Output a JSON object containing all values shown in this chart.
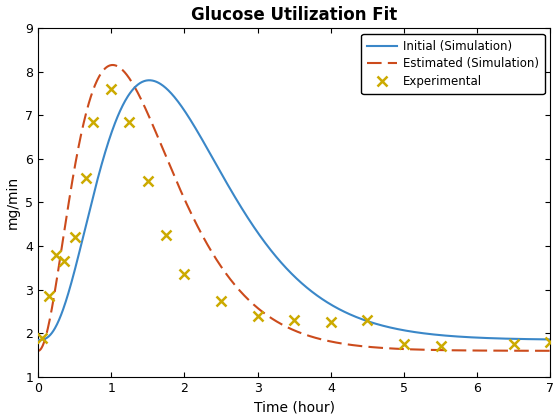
{
  "title": "Glucose Utilization Fit",
  "xlabel": "Time (hour)",
  "ylabel": "mg/min",
  "xlim": [
    0,
    7
  ],
  "ylim": [
    1,
    9
  ],
  "xticks": [
    0,
    1,
    2,
    3,
    4,
    5,
    6,
    7
  ],
  "yticks": [
    1,
    2,
    3,
    4,
    5,
    6,
    7,
    8,
    9
  ],
  "initial_color": "#3a87c8",
  "estimated_color": "#cc4b1c",
  "exp_color": "#ccaa00",
  "exp_x": [
    0.05,
    0.15,
    0.25,
    0.35,
    0.5,
    0.65,
    0.75,
    1.0,
    1.25,
    1.5,
    1.75,
    2.0,
    2.5,
    3.0,
    3.5,
    4.0,
    4.5,
    5.0,
    5.5,
    6.5,
    7.0
  ],
  "exp_y": [
    1.9,
    2.85,
    3.8,
    3.65,
    4.2,
    5.55,
    6.85,
    7.6,
    6.85,
    5.5,
    4.25,
    3.35,
    2.75,
    2.4,
    2.3,
    2.25,
    2.3,
    1.75,
    1.7,
    1.75,
    1.8
  ],
  "legend_labels": [
    "Initial (Simulation)",
    "Estimated (Simulation)",
    "Experimental"
  ],
  "figsize": [
    5.6,
    4.2
  ],
  "dpi": 100
}
